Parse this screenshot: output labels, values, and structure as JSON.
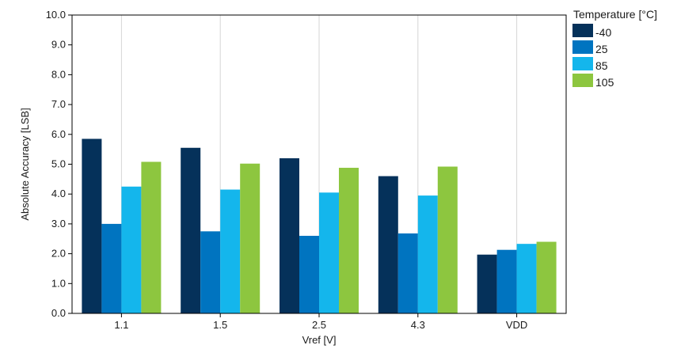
{
  "chart_data": {
    "type": "bar",
    "xlabel": "Vref [V]",
    "ylabel": "Absolute Accuracy [LSB]",
    "categories": [
      "1.1",
      "1.5",
      "2.5",
      "4.3",
      "VDD"
    ],
    "ylim": [
      0,
      10
    ],
    "yticks": [
      "0.0",
      "1.0",
      "2.0",
      "3.0",
      "4.0",
      "5.0",
      "6.0",
      "7.0",
      "8.0",
      "9.0",
      "10.0"
    ],
    "grid": "vertical",
    "legend": {
      "title": "Temperature [°C]",
      "placement": "top-right"
    },
    "series": [
      {
        "name": "-40",
        "color": "#05315a",
        "values": [
          5.85,
          5.55,
          5.2,
          4.6,
          1.97
        ]
      },
      {
        "name": "25",
        "color": "#0074c0",
        "values": [
          3.0,
          2.75,
          2.6,
          2.68,
          2.13
        ]
      },
      {
        "name": "85",
        "color": "#14b6ec",
        "values": [
          4.25,
          4.15,
          4.05,
          3.95,
          2.33
        ]
      },
      {
        "name": "105",
        "color": "#8dc63f",
        "values": [
          5.08,
          5.02,
          4.88,
          4.92,
          2.4
        ]
      }
    ]
  }
}
